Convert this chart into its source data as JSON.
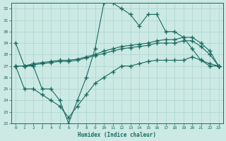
{
  "xlabel": "Humidex (Indice chaleur)",
  "ylabel": "",
  "background_color": "#cce9e4",
  "grid_color": "#aad4cc",
  "line_color": "#1a6b60",
  "xlim": [
    -0.5,
    23.5
  ],
  "ylim": [
    22,
    32.5
  ],
  "yticks": [
    22,
    23,
    24,
    25,
    26,
    27,
    28,
    29,
    30,
    31,
    32
  ],
  "xticks": [
    0,
    1,
    2,
    3,
    4,
    5,
    6,
    7,
    8,
    9,
    10,
    11,
    12,
    13,
    14,
    15,
    16,
    17,
    18,
    19,
    20,
    21,
    22,
    23
  ],
  "line1_x": [
    0,
    1,
    2,
    3,
    4,
    5,
    6,
    7,
    8,
    9,
    10,
    11,
    12,
    13,
    14,
    15,
    16,
    17,
    18,
    19,
    20,
    21,
    22,
    23
  ],
  "line1_y": [
    29,
    27,
    27,
    25,
    25,
    24,
    22,
    24,
    26,
    28.5,
    32.5,
    32.5,
    32,
    31.5,
    30.5,
    31.5,
    31.5,
    30,
    30,
    29.5,
    28.5,
    27.5,
    27,
    27
  ],
  "line2_x": [
    0,
    1,
    2,
    3,
    4,
    5,
    6,
    7,
    8,
    9,
    10,
    11,
    12,
    13,
    14,
    15,
    16,
    17,
    18,
    19,
    20,
    21,
    22,
    23
  ],
  "line2_y": [
    27,
    27,
    27.2,
    27.3,
    27.4,
    27.5,
    27.5,
    27.6,
    27.8,
    28.0,
    28.3,
    28.5,
    28.7,
    28.8,
    28.9,
    29.0,
    29.2,
    29.3,
    29.3,
    29.5,
    29.5,
    29.0,
    28.3,
    27
  ],
  "line3_x": [
    0,
    1,
    2,
    3,
    4,
    5,
    6,
    7,
    8,
    9,
    10,
    11,
    12,
    13,
    14,
    15,
    16,
    17,
    18,
    19,
    20,
    21,
    22,
    23
  ],
  "line3_y": [
    27,
    27,
    27.1,
    27.2,
    27.3,
    27.4,
    27.4,
    27.5,
    27.7,
    27.9,
    28.1,
    28.3,
    28.5,
    28.6,
    28.7,
    28.8,
    29.0,
    29.0,
    29.0,
    29.2,
    29.2,
    28.7,
    28.0,
    27
  ],
  "line4_x": [
    0,
    1,
    2,
    3,
    4,
    5,
    6,
    7,
    8,
    9,
    10,
    11,
    12,
    13,
    14,
    15,
    16,
    17,
    18,
    19,
    20,
    21,
    22,
    23
  ],
  "line4_y": [
    27,
    25,
    25,
    24.5,
    24,
    23.5,
    22.5,
    23.5,
    24.5,
    25.5,
    26,
    26.5,
    27,
    27,
    27.2,
    27.4,
    27.5,
    27.5,
    27.5,
    27.5,
    27.8,
    27.5,
    27.2,
    27
  ]
}
